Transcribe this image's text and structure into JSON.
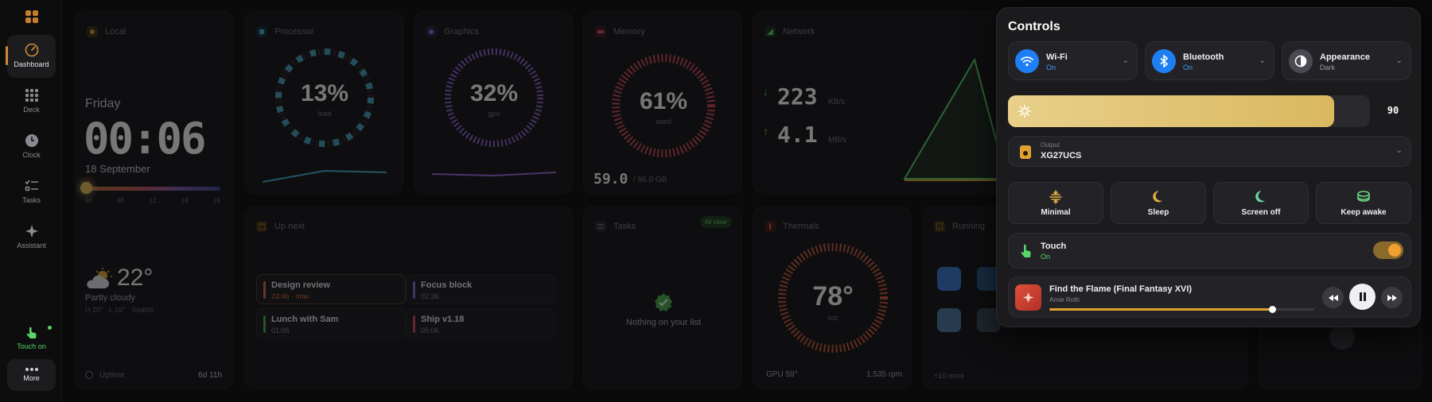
{
  "sidebar": {
    "items": [
      {
        "label": "Dashboard"
      },
      {
        "label": "Deck"
      },
      {
        "label": "Clock"
      },
      {
        "label": "Tasks"
      },
      {
        "label": "Assistant"
      }
    ],
    "touch": "Touch on",
    "more": "More"
  },
  "local": {
    "title": "Local",
    "day": "Friday",
    "time": "00:06",
    "date": "18 September",
    "hours": [
      "00",
      "06",
      "12",
      "18",
      "24"
    ],
    "temp": "22°",
    "condition": "Partly cloudy",
    "hi_lo": "H 25°   L 16°   Seattle",
    "uptime_label": "Uptime",
    "uptime": "6d 11h",
    "icon": "partly-cloudy-icon"
  },
  "processor": {
    "title": "Processor",
    "value": "13%",
    "sub": "load"
  },
  "graphics": {
    "title": "Graphics",
    "value": "32%",
    "sub": "gpu"
  },
  "memory": {
    "title": "Memory",
    "value": "61%",
    "sub": "used",
    "used": "59.0",
    "total": "/ 96.0 GB"
  },
  "network": {
    "title": "Network",
    "down": "223",
    "down_unit": "KB/s",
    "up": "4.1",
    "up_unit": "MB/s"
  },
  "upnext": {
    "title": "Up next",
    "events": [
      {
        "name": "Design review",
        "time": "23:46 · now",
        "color": "#e0703a"
      },
      {
        "name": "Focus block",
        "time": "02:36",
        "color": "#8a6bd6"
      },
      {
        "name": "Lunch with Sam",
        "time": "01:06",
        "color": "#4caf50"
      },
      {
        "name": "Ship v1.18",
        "time": "05:06",
        "color": "#d94a5a"
      }
    ]
  },
  "tasks": {
    "title": "Tasks",
    "badge": "All clear",
    "empty": "Nothing on your list"
  },
  "thermals": {
    "title": "Thermals",
    "value": "78°",
    "sub": "soc",
    "gpu": "GPU 59°",
    "fan": "1,535 rpm"
  },
  "running": {
    "title": "Running",
    "more": "+10 more"
  },
  "controls": {
    "title": "Controls",
    "wifi": {
      "label": "Wi-Fi",
      "state": "On"
    },
    "bluetooth": {
      "label": "Bluetooth",
      "state": "On"
    },
    "appearance": {
      "label": "Appearance",
      "state": "Dark"
    },
    "brightness": "90",
    "brightness_level": 0.9,
    "output_label": "Output",
    "output": "XG27UCS",
    "modes": [
      "Minimal",
      "Sleep",
      "Screen off",
      "Keep awake"
    ],
    "touch": {
      "label": "Touch",
      "state": "On"
    },
    "media": {
      "title": "Find the Flame (Final Fantasy XVI)",
      "artist": "Arnie Roth",
      "progress": 0.84
    }
  },
  "colors": {
    "accent": "#c98a3a",
    "blue": "#1e7ff5",
    "green": "#5ad56a",
    "yellow": "#e0c070"
  }
}
